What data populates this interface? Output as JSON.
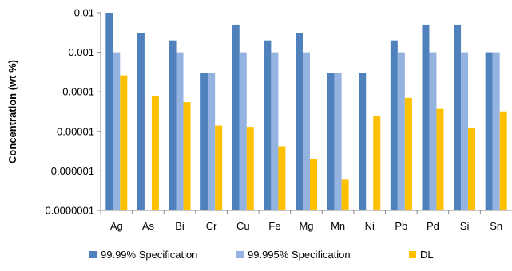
{
  "chart_data": {
    "type": "bar",
    "yscale": "log",
    "ylabel": "Concentration (wt %)",
    "xlabel": "",
    "title": "",
    "ylim": [
      1e-07,
      0.01
    ],
    "yticks": [
      {
        "value": 0.01,
        "label": "0.01"
      },
      {
        "value": 0.001,
        "label": "0.001"
      },
      {
        "value": 0.0001,
        "label": "0.0001"
      },
      {
        "value": 1e-05,
        "label": "0.00001"
      },
      {
        "value": 1e-06,
        "label": "0.000001"
      },
      {
        "value": 1e-07,
        "label": "0.0000001"
      }
    ],
    "grid": false,
    "legend_position": "bottom",
    "categories": [
      "Ag",
      "As",
      "Bi",
      "Cr",
      "Cu",
      "Fe",
      "Mg",
      "Mn",
      "Ni",
      "Pb",
      "Pd",
      "Si",
      "Sn"
    ],
    "series": [
      {
        "name": "99.99% Specification",
        "color": "#4F81BD",
        "values": [
          0.01,
          0.003,
          0.002,
          0.0003,
          0.005,
          0.002,
          0.003,
          0.0003,
          0.0003,
          0.002,
          0.005,
          0.005,
          0.001
        ]
      },
      {
        "name": "99.995% Specification",
        "color": "#95B3E0",
        "values": [
          0.001,
          null,
          0.001,
          0.0003,
          0.001,
          0.001,
          0.001,
          0.0003,
          null,
          0.001,
          0.001,
          0.001,
          0.001
        ]
      },
      {
        "name": "DL",
        "color": "#FFC000",
        "values": [
          0.00026,
          8e-05,
          5.5e-05,
          1.4e-05,
          1.3e-05,
          4.2e-06,
          2e-06,
          6e-07,
          2.5e-05,
          7e-05,
          3.7e-05,
          1.2e-05,
          3.2e-05
        ]
      }
    ]
  }
}
